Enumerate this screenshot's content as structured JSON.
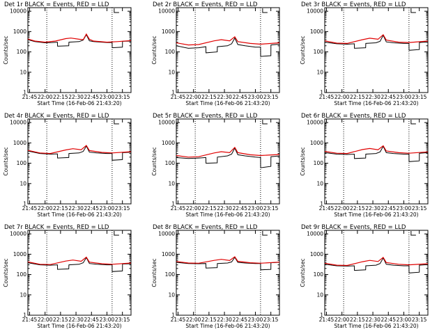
{
  "chart_data": {
    "type": "line",
    "x_tick_labels": [
      "21:45",
      "22:00",
      "22:15",
      "22:30",
      "22:45",
      "23:00",
      "23:15"
    ],
    "x_tick_minutes": [
      0,
      15,
      30,
      45,
      60,
      75,
      90
    ],
    "x_start": "21:43:20",
    "xlim_minutes": [
      -1.6667,
      98.3333
    ],
    "vlines_minutes": [
      16.6667,
      80.0
    ],
    "yscale": "log",
    "ylim": [
      1,
      15000
    ],
    "y_tick_labels": [
      "1",
      "10",
      "100",
      "1000",
      "10000"
    ],
    "y_tick_values": [
      1,
      10,
      100,
      1000,
      10000
    ],
    "xlabel": "Start Time (16-Feb-06 21:43:20)",
    "ylabel": "Counts/sec",
    "colors": {
      "events": "#000000",
      "lld": "#e00000"
    },
    "panels": [
      {
        "title": "Det 1r BLACK = Events, RED = LLD",
        "x_tick_labels": [
          "21:45",
          "22:00",
          "22:15",
          "22:30",
          "22:45",
          "23:00",
          "23:15"
        ],
        "black": [
          [
            -1.7,
            400
          ],
          [
            5,
            320
          ],
          [
            15,
            280
          ],
          [
            22,
            290
          ],
          [
            27,
            300
          ],
          [
            27.1,
            190
          ],
          [
            38,
            200
          ],
          [
            38.1,
            300
          ],
          [
            48,
            320
          ],
          [
            52,
            380
          ],
          [
            55,
            700
          ],
          [
            58,
            350
          ],
          [
            62,
            320
          ],
          [
            70,
            300
          ],
          [
            75,
            290
          ],
          [
            80,
            290
          ],
          [
            80.1,
            160
          ],
          [
            90,
            170
          ],
          [
            90.1,
            330
          ],
          [
            98.3,
            340
          ]
        ],
        "red": [
          [
            -1.7,
            430
          ],
          [
            5,
            340
          ],
          [
            15,
            300
          ],
          [
            25,
            340
          ],
          [
            35,
            450
          ],
          [
            40,
            480
          ],
          [
            48,
            420
          ],
          [
            52,
            400
          ],
          [
            55,
            750
          ],
          [
            58,
            420
          ],
          [
            62,
            340
          ],
          [
            75,
            300
          ],
          [
            85,
            320
          ],
          [
            98.3,
            360
          ]
        ]
      },
      {
        "title": "Det 2r BLACK = Events, RED = LLD",
        "x_tick_labels": [
          "21:45",
          "22:00",
          "22:15",
          "22:30",
          "22:45",
          "23:00",
          "23:15"
        ],
        "black": [
          [
            -1.7,
            200
          ],
          [
            10,
            150
          ],
          [
            20,
            160
          ],
          [
            27,
            180
          ],
          [
            27.1,
            90
          ],
          [
            38,
            100
          ],
          [
            38.1,
            180
          ],
          [
            48,
            200
          ],
          [
            52,
            250
          ],
          [
            55,
            480
          ],
          [
            58,
            230
          ],
          [
            65,
            200
          ],
          [
            75,
            170
          ],
          [
            80,
            170
          ],
          [
            80.1,
            60
          ],
          [
            90,
            65
          ],
          [
            90.1,
            220
          ],
          [
            98.3,
            240
          ]
        ],
        "red": [
          [
            -1.7,
            280
          ],
          [
            10,
            220
          ],
          [
            20,
            230
          ],
          [
            35,
            350
          ],
          [
            42,
            400
          ],
          [
            50,
            350
          ],
          [
            55,
            550
          ],
          [
            58,
            320
          ],
          [
            70,
            260
          ],
          [
            80,
            240
          ],
          [
            98.3,
            280
          ]
        ]
      },
      {
        "title": "Det 3r BLACK = Events, RED = LLD",
        "x_tick_labels": [
          "21:45",
          "22:00",
          "22:15",
          "22:30",
          "22:45",
          "23:00",
          "23:15"
        ],
        "black": [
          [
            -1.7,
            300
          ],
          [
            10,
            250
          ],
          [
            20,
            240
          ],
          [
            27,
            250
          ],
          [
            27.1,
            150
          ],
          [
            38,
            160
          ],
          [
            38.1,
            260
          ],
          [
            48,
            280
          ],
          [
            52,
            330
          ],
          [
            55,
            650
          ],
          [
            58,
            310
          ],
          [
            65,
            280
          ],
          [
            75,
            260
          ],
          [
            80,
            260
          ],
          [
            80.1,
            120
          ],
          [
            90,
            130
          ],
          [
            90.1,
            290
          ],
          [
            98.3,
            310
          ]
        ],
        "red": [
          [
            -1.7,
            350
          ],
          [
            10,
            270
          ],
          [
            20,
            260
          ],
          [
            35,
            400
          ],
          [
            42,
            470
          ],
          [
            50,
            420
          ],
          [
            55,
            700
          ],
          [
            58,
            380
          ],
          [
            70,
            300
          ],
          [
            80,
            290
          ],
          [
            98.3,
            340
          ]
        ]
      },
      {
        "title": "Det 4r BLACK = Events, RED = LLD",
        "x_tick_labels": [
          "21:45",
          "22:00",
          "22:15",
          "22:30",
          "22:45",
          "23:00",
          "23:15"
        ],
        "black": [
          [
            -1.7,
            400
          ],
          [
            10,
            300
          ],
          [
            20,
            280
          ],
          [
            27,
            290
          ],
          [
            27.1,
            180
          ],
          [
            38,
            190
          ],
          [
            38.1,
            300
          ],
          [
            48,
            320
          ],
          [
            52,
            380
          ],
          [
            55,
            700
          ],
          [
            58,
            350
          ],
          [
            65,
            320
          ],
          [
            75,
            300
          ],
          [
            80,
            300
          ],
          [
            80.1,
            140
          ],
          [
            90,
            150
          ],
          [
            90.1,
            330
          ],
          [
            98.3,
            350
          ]
        ],
        "red": [
          [
            -1.7,
            430
          ],
          [
            10,
            320
          ],
          [
            20,
            300
          ],
          [
            35,
            450
          ],
          [
            42,
            520
          ],
          [
            50,
            460
          ],
          [
            55,
            750
          ],
          [
            58,
            420
          ],
          [
            70,
            340
          ],
          [
            80,
            320
          ],
          [
            98.3,
            370
          ]
        ]
      },
      {
        "title": "Det 5r BLACK = Events, RED = LLD",
        "x_tick_labels": [
          "21:45",
          "22:00",
          "22:15",
          "22:30",
          "22:45",
          "23:00",
          "23:15"
        ],
        "black": [
          [
            -1.7,
            190
          ],
          [
            10,
            170
          ],
          [
            20,
            180
          ],
          [
            27,
            190
          ],
          [
            27.1,
            100
          ],
          [
            38,
            105
          ],
          [
            38.1,
            200
          ],
          [
            48,
            230
          ],
          [
            52,
            280
          ],
          [
            55,
            550
          ],
          [
            58,
            260
          ],
          [
            65,
            230
          ],
          [
            75,
            200
          ],
          [
            80,
            190
          ],
          [
            80.1,
            60
          ],
          [
            90,
            70
          ],
          [
            90.1,
            210
          ],
          [
            98.3,
            230
          ]
        ],
        "red": [
          [
            -1.7,
            240
          ],
          [
            10,
            200
          ],
          [
            20,
            210
          ],
          [
            35,
            320
          ],
          [
            42,
            370
          ],
          [
            50,
            330
          ],
          [
            55,
            600
          ],
          [
            58,
            330
          ],
          [
            70,
            260
          ],
          [
            80,
            240
          ],
          [
            98.3,
            270
          ]
        ]
      },
      {
        "title": "Det 6r BLACK = Events, RED = LLD",
        "x_tick_labels": [
          "21:45",
          "22:00",
          "22:15",
          "22:30",
          "22:45",
          "23:00",
          "23:15"
        ],
        "black": [
          [
            -1.7,
            330
          ],
          [
            10,
            280
          ],
          [
            20,
            270
          ],
          [
            27,
            280
          ],
          [
            27.1,
            170
          ],
          [
            38,
            180
          ],
          [
            38.1,
            280
          ],
          [
            48,
            300
          ],
          [
            52,
            360
          ],
          [
            55,
            680
          ],
          [
            58,
            330
          ],
          [
            65,
            300
          ],
          [
            75,
            280
          ],
          [
            80,
            280
          ],
          [
            80.1,
            120
          ],
          [
            90,
            130
          ],
          [
            90.1,
            310
          ],
          [
            98.3,
            330
          ]
        ],
        "red": [
          [
            -1.7,
            380
          ],
          [
            10,
            310
          ],
          [
            20,
            300
          ],
          [
            35,
            470
          ],
          [
            42,
            530
          ],
          [
            50,
            460
          ],
          [
            55,
            720
          ],
          [
            58,
            400
          ],
          [
            70,
            330
          ],
          [
            80,
            310
          ],
          [
            98.3,
            360
          ]
        ]
      },
      {
        "title": "Det 7r BLACK = Events, RED = LLD",
        "x_tick_labels": [
          "21:45",
          "22:00",
          "22:15",
          "22:30",
          "22:45",
          "23:00",
          "23:15"
        ],
        "black": [
          [
            -1.7,
            380
          ],
          [
            10,
            300
          ],
          [
            20,
            290
          ],
          [
            27,
            300
          ],
          [
            27.1,
            180
          ],
          [
            38,
            190
          ],
          [
            38.1,
            300
          ],
          [
            48,
            320
          ],
          [
            52,
            380
          ],
          [
            55,
            680
          ],
          [
            58,
            350
          ],
          [
            65,
            320
          ],
          [
            75,
            300
          ],
          [
            80,
            300
          ],
          [
            80.1,
            140
          ],
          [
            90,
            150
          ],
          [
            90.1,
            330
          ],
          [
            98.3,
            340
          ]
        ],
        "red": [
          [
            -1.7,
            420
          ],
          [
            10,
            320
          ],
          [
            20,
            310
          ],
          [
            35,
            460
          ],
          [
            42,
            520
          ],
          [
            50,
            450
          ],
          [
            55,
            720
          ],
          [
            58,
            410
          ],
          [
            70,
            340
          ],
          [
            80,
            320
          ],
          [
            98.3,
            370
          ]
        ]
      },
      {
        "title": "Det 8r BLACK = Events, RED = LLD",
        "x_tick_labels": [
          "21:45",
          "22:00",
          "22:15",
          "22:30",
          "22:45",
          "23:00",
          "23:15"
        ],
        "black": [
          [
            -1.7,
            400
          ],
          [
            10,
            350
          ],
          [
            20,
            340
          ],
          [
            27,
            350
          ],
          [
            27.1,
            210
          ],
          [
            38,
            220
          ],
          [
            38.1,
            350
          ],
          [
            48,
            370
          ],
          [
            52,
            420
          ],
          [
            55,
            700
          ],
          [
            58,
            400
          ],
          [
            65,
            370
          ],
          [
            75,
            350
          ],
          [
            80,
            350
          ],
          [
            80.1,
            170
          ],
          [
            90,
            180
          ],
          [
            90.1,
            380
          ],
          [
            98.3,
            400
          ]
        ],
        "red": [
          [
            -1.7,
            440
          ],
          [
            10,
            370
          ],
          [
            20,
            360
          ],
          [
            35,
            500
          ],
          [
            42,
            560
          ],
          [
            50,
            490
          ],
          [
            55,
            750
          ],
          [
            58,
            450
          ],
          [
            70,
            380
          ],
          [
            80,
            360
          ],
          [
            98.3,
            410
          ]
        ]
      },
      {
        "title": "Det 9r BLACK = Events, RED = LLD",
        "x_tick_labels": [
          "21:45",
          "22:00",
          "22:15",
          "22:30",
          "22:45",
          "23:00",
          "23:15"
        ],
        "black": [
          [
            -1.7,
            320
          ],
          [
            10,
            270
          ],
          [
            20,
            260
          ],
          [
            27,
            270
          ],
          [
            27.1,
            160
          ],
          [
            38,
            170
          ],
          [
            38.1,
            270
          ],
          [
            48,
            290
          ],
          [
            52,
            350
          ],
          [
            55,
            650
          ],
          [
            58,
            320
          ],
          [
            65,
            290
          ],
          [
            75,
            270
          ],
          [
            80,
            270
          ],
          [
            80.1,
            120
          ],
          [
            90,
            130
          ],
          [
            90.1,
            290
          ],
          [
            98.3,
            310
          ]
        ],
        "red": [
          [
            -1.7,
            360
          ],
          [
            10,
            290
          ],
          [
            20,
            280
          ],
          [
            35,
            430
          ],
          [
            42,
            500
          ],
          [
            50,
            440
          ],
          [
            55,
            700
          ],
          [
            58,
            390
          ],
          [
            70,
            320
          ],
          [
            80,
            300
          ],
          [
            98.3,
            340
          ]
        ]
      }
    ]
  }
}
